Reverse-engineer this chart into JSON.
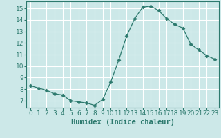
{
  "x": [
    0,
    1,
    2,
    3,
    4,
    5,
    6,
    7,
    8,
    9,
    10,
    11,
    12,
    13,
    14,
    15,
    16,
    17,
    18,
    19,
    20,
    21,
    22,
    23
  ],
  "y": [
    8.3,
    8.1,
    7.9,
    7.6,
    7.5,
    7.0,
    6.9,
    6.8,
    6.6,
    7.1,
    8.6,
    10.5,
    12.6,
    14.1,
    15.1,
    15.2,
    14.8,
    14.1,
    13.6,
    13.3,
    11.9,
    11.4,
    10.9,
    10.6
  ],
  "xlabel": "Humidex (Indice chaleur)",
  "xlim": [
    -0.5,
    23.5
  ],
  "ylim": [
    6.4,
    15.6
  ],
  "yticks": [
    7,
    8,
    9,
    10,
    11,
    12,
    13,
    14,
    15
  ],
  "xticks": [
    0,
    1,
    2,
    3,
    4,
    5,
    6,
    7,
    8,
    9,
    10,
    11,
    12,
    13,
    14,
    15,
    16,
    17,
    18,
    19,
    20,
    21,
    22,
    23
  ],
  "line_color": "#2d7a6e",
  "marker": "D",
  "marker_size": 2.5,
  "bg_color": "#cce8e8",
  "grid_color": "#ffffff",
  "label_color": "#2d7a6e",
  "xlabel_fontsize": 7.5,
  "tick_fontsize": 6.5
}
